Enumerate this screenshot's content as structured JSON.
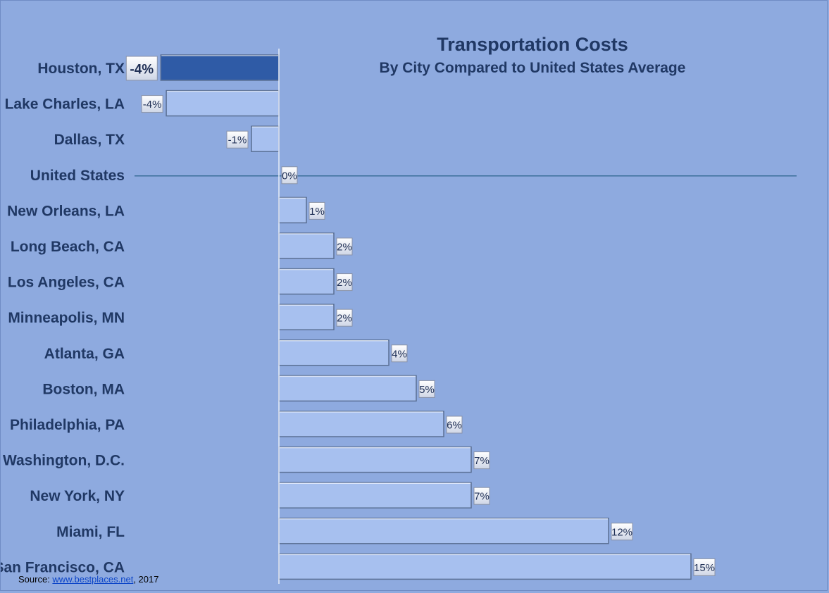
{
  "chart_data": {
    "type": "bar",
    "orientation": "horizontal",
    "title": "Transportation Costs",
    "subtitle": "By City Compared to United States Average",
    "categories": [
      "Houston, TX",
      "Lake Charles, LA",
      "Dallas, TX",
      "United States",
      "New Orleans, LA",
      "Long Beach, CA",
      "Los Angeles,  CA",
      "Minneapolis, MN",
      "Atlanta, GA",
      "Boston, MA",
      "Philadelphia, PA",
      "Washington, D.C.",
      "New York, NY",
      "Miami, FL",
      "San Francisco, CA"
    ],
    "values": [
      -4.3,
      -4.1,
      -1,
      0,
      1,
      2,
      2,
      2,
      4,
      5,
      6,
      7,
      7,
      12,
      15
    ],
    "data_labels": [
      "-4%",
      "-4%",
      "-1%",
      "0%",
      "1%",
      "2%",
      "2%",
      "2%",
      "4%",
      "5%",
      "6%",
      "7%",
      "7%",
      "12%",
      "15%"
    ],
    "highlight_category": "Houston, TX",
    "reference_line": "United States",
    "xlim": [
      -5,
      17
    ],
    "grid": false,
    "legend": "none",
    "colors": {
      "background": "#8eaadf",
      "bar": "#a7c0ef",
      "highlight_bar": "#2f5ba6",
      "label_text": "#203864",
      "reference_line": "#3a6f9a"
    }
  },
  "source": {
    "prefix": "Source: ",
    "link_text": "www.bestplaces.net",
    "suffix": ", 2017"
  }
}
